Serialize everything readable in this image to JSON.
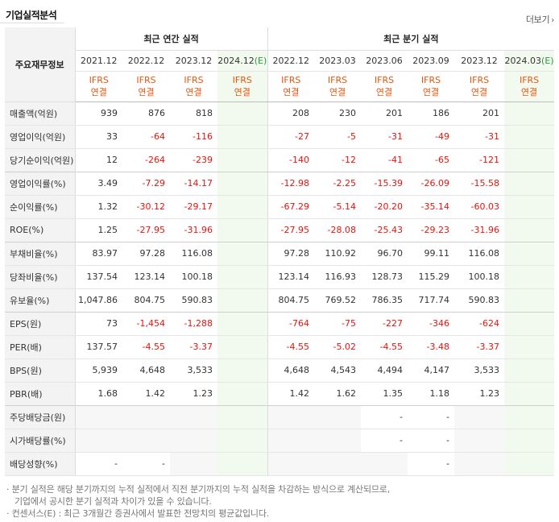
{
  "section": {
    "title": "기업실적분석",
    "more_label": "더보기",
    "more_icon": "chevron-right-icon"
  },
  "header": {
    "corner_label": "주요재무정보",
    "annual_group": "최근 연간 실적",
    "quarter_group": "최근 분기 실적",
    "annual_periods": [
      "2021.12",
      "2022.12",
      "2023.12",
      "2024.12"
    ],
    "annual_estimate_mark": "(E)",
    "quarter_periods": [
      "2022.12",
      "2023.03",
      "2023.06",
      "2023.09",
      "2023.12",
      "2024.03"
    ],
    "quarter_estimate_mark": "(E)",
    "basis_top": "IFRS",
    "basis_bottom": "연결"
  },
  "rows": [
    {
      "label": "매출액(억원)",
      "annual": [
        "939",
        "876",
        "818",
        ""
      ],
      "quarter": [
        "208",
        "230",
        "201",
        "186",
        "201",
        ""
      ]
    },
    {
      "label": "영업이익(억원)",
      "annual": [
        "33",
        "-64",
        "-116",
        ""
      ],
      "quarter": [
        "-27",
        "-5",
        "-31",
        "-49",
        "-31",
        ""
      ]
    },
    {
      "label": "당기순이익(억원)",
      "annual": [
        "12",
        "-264",
        "-239",
        ""
      ],
      "quarter": [
        "-140",
        "-12",
        "-41",
        "-65",
        "-121",
        ""
      ]
    },
    {
      "label": "영업이익률(%)",
      "annual": [
        "3.49",
        "-7.29",
        "-14.17",
        ""
      ],
      "quarter": [
        "-12.98",
        "-2.25",
        "-15.39",
        "-26.09",
        "-15.58",
        ""
      ]
    },
    {
      "label": "순이익률(%)",
      "annual": [
        "1.32",
        "-30.12",
        "-29.17",
        ""
      ],
      "quarter": [
        "-67.29",
        "-5.14",
        "-20.20",
        "-35.14",
        "-60.03",
        ""
      ]
    },
    {
      "label": "ROE(%)",
      "annual": [
        "1.25",
        "-27.95",
        "-31.96",
        ""
      ],
      "quarter": [
        "-27.95",
        "-28.08",
        "-25.43",
        "-29.23",
        "-31.96",
        ""
      ]
    },
    {
      "label": "부채비율(%)",
      "annual": [
        "83.97",
        "97.28",
        "116.08",
        ""
      ],
      "quarter": [
        "97.28",
        "110.92",
        "96.70",
        "99.11",
        "116.08",
        ""
      ]
    },
    {
      "label": "당좌비율(%)",
      "annual": [
        "137.54",
        "123.14",
        "100.18",
        ""
      ],
      "quarter": [
        "123.14",
        "116.93",
        "128.73",
        "115.29",
        "100.18",
        ""
      ]
    },
    {
      "label": "유보율(%)",
      "annual": [
        "1,047.86",
        "804.75",
        "590.83",
        ""
      ],
      "quarter": [
        "804.75",
        "769.52",
        "786.35",
        "717.74",
        "590.83",
        ""
      ]
    },
    {
      "label": "EPS(원)",
      "annual": [
        "73",
        "-1,454",
        "-1,288",
        ""
      ],
      "quarter": [
        "-764",
        "-75",
        "-227",
        "-346",
        "-624",
        ""
      ]
    },
    {
      "label": "PER(배)",
      "annual": [
        "137.57",
        "-4.55",
        "-3.37",
        ""
      ],
      "quarter": [
        "-4.55",
        "-5.02",
        "-4.55",
        "-3.48",
        "-3.37",
        ""
      ]
    },
    {
      "label": "BPS(원)",
      "annual": [
        "5,939",
        "4,648",
        "3,533",
        ""
      ],
      "quarter": [
        "4,648",
        "4,543",
        "4,494",
        "4,147",
        "3,533",
        ""
      ]
    },
    {
      "label": "PBR(배)",
      "annual": [
        "1.68",
        "1.42",
        "1.23",
        ""
      ],
      "quarter": [
        "1.42",
        "1.62",
        "1.35",
        "1.18",
        "1.23",
        ""
      ]
    },
    {
      "label": "주당배당금(원)",
      "annual": [
        "",
        "",
        "",
        ""
      ],
      "quarter": [
        "",
        "",
        "-",
        "-",
        "",
        ""
      ]
    },
    {
      "label": "시가배당률(%)",
      "annual": [
        "",
        "",
        "",
        ""
      ],
      "quarter": [
        "",
        "",
        "-",
        "-",
        "",
        ""
      ]
    },
    {
      "label": "배당성향(%)",
      "annual": [
        "-",
        "-",
        "",
        ""
      ],
      "quarter": [
        "",
        "",
        "",
        "-",
        "",
        ""
      ]
    }
  ],
  "notes": {
    "line1": "분기 실적은 해당 분기까지의 누적 실적에서 직전 분기까지의 누적 실적을 차감하는 방식으로 계산되므로,",
    "line1_cont": "기업에서 공시한 분기 실적과 차이가 있을 수 있습니다.",
    "line2": "컨센서스(E) : 최근 3개월간 증권사에서 발표한 전망치의 평균값입니다."
  },
  "colors": {
    "accent_orange": "#e8560c",
    "negative_red": "#e8130c",
    "estimate_green": "#2a9a3c",
    "estimate_bg": "#f2f9ee"
  }
}
